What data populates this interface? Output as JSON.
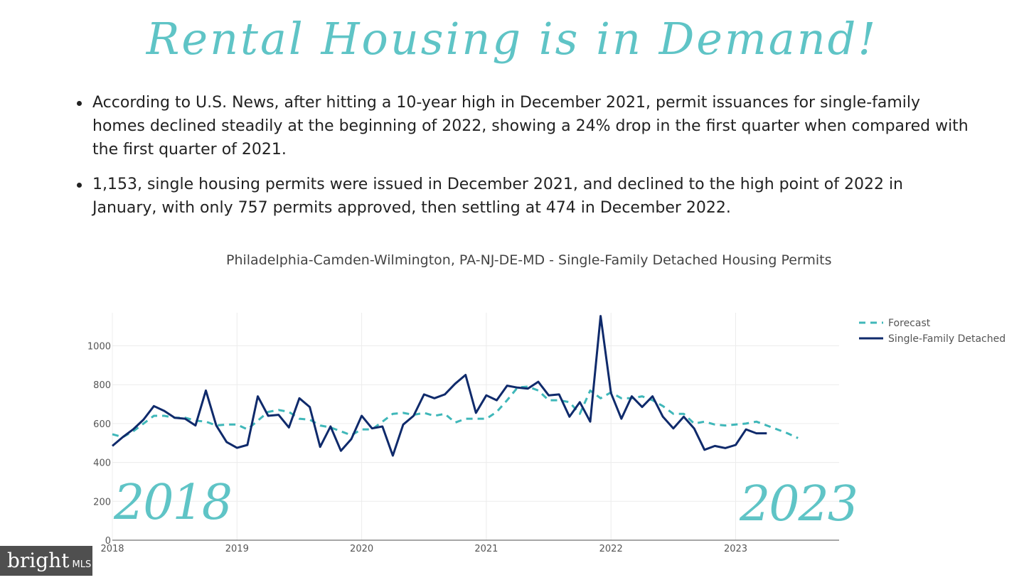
{
  "title": "Rental Housing is in Demand!",
  "bullets": [
    "According to U.S. News, after hitting a 10-year high in December 2021, permit issuances for single-family homes declined steadily at the beginning of 2022, showing a 24% drop in the first quarter when compared with the first quarter of 2021.",
    "1,153, single housing permits were issued in December 2021, and declined to the high point of 2022 in January, with only 757 permits approved, then settling at 474 in December 2022."
  ],
  "decor": {
    "start_year": "2018",
    "end_year": "2023"
  },
  "watermark": {
    "brand": "bright",
    "suffix": "MLS"
  },
  "colors": {
    "forecast": "#3fb7b9",
    "actual": "#0f2a6b",
    "accent": "#5fc4c6"
  },
  "chart_data": {
    "type": "line",
    "title": "Philadelphia-Camden-Wilmington, PA-NJ-DE-MD - Single-Family Detached Housing Permits",
    "xlabel": "",
    "ylabel": "",
    "xlim": [
      2018.0,
      2023.83
    ],
    "ylim": [
      0,
      1170
    ],
    "x_ticks": [
      "2018",
      "2019",
      "2020",
      "2021",
      "2022",
      "2023"
    ],
    "y_ticks": [
      0,
      200,
      400,
      600,
      800,
      1000
    ],
    "grid": true,
    "legend_position": "top-right",
    "series": [
      {
        "name": "Forecast",
        "style": "dashed",
        "color": "#3fb7b9",
        "start": 2018.0,
        "step": 0.0833333,
        "values": [
          545,
          530,
          560,
          600,
          640,
          640,
          630,
          630,
          615,
          610,
          590,
          595,
          595,
          570,
          615,
          660,
          670,
          660,
          625,
          620,
          590,
          580,
          560,
          540,
          570,
          570,
          610,
          650,
          655,
          645,
          655,
          640,
          650,
          605,
          625,
          625,
          625,
          660,
          720,
          785,
          790,
          770,
          720,
          720,
          710,
          650,
          770,
          730,
          760,
          730,
          730,
          740,
          720,
          690,
          650,
          650,
          600,
          610,
          595,
          590,
          595,
          600,
          610,
          590,
          570,
          550,
          525
        ]
      },
      {
        "name": "Single-Family Detached",
        "style": "solid",
        "color": "#0f2a6b",
        "start": 2018.0,
        "step": 0.0833333,
        "values": [
          485,
          530,
          570,
          620,
          690,
          665,
          630,
          625,
          590,
          770,
          590,
          505,
          475,
          490,
          740,
          640,
          645,
          580,
          730,
          685,
          480,
          585,
          460,
          520,
          640,
          575,
          585,
          435,
          595,
          640,
          750,
          730,
          750,
          805,
          850,
          655,
          745,
          720,
          795,
          785,
          780,
          815,
          745,
          750,
          635,
          710,
          610,
          1153,
          757,
          625,
          740,
          685,
          740,
          635,
          575,
          635,
          575,
          465,
          485,
          474,
          490,
          570,
          550,
          550
        ]
      }
    ]
  }
}
